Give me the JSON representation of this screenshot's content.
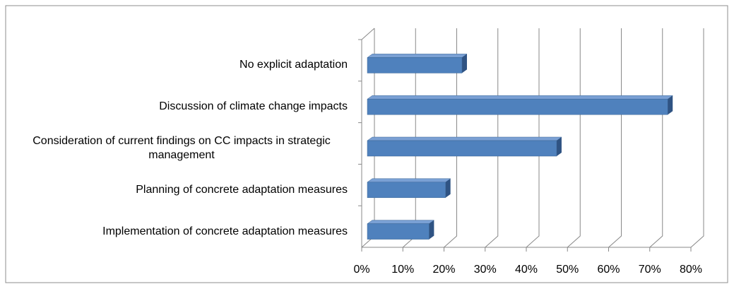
{
  "chart_data": {
    "type": "bar3d_horizontal",
    "categories": [
      "No explicit adaptation",
      "Discussion of climate change impacts",
      "Consideration of current findings on CC impacts in strategic management",
      "Planning of concrete adaptation measures",
      "Implementation of concrete adaptation measures"
    ],
    "values": [
      23,
      73,
      46,
      19,
      15
    ],
    "color": "#4f81bd",
    "xlim": [
      0,
      80
    ],
    "xticks": [
      {
        "value": 0,
        "label": "0%"
      },
      {
        "value": 10,
        "label": "10%"
      },
      {
        "value": 20,
        "label": "20%"
      },
      {
        "value": 30,
        "label": "30%"
      },
      {
        "value": 40,
        "label": "40%"
      },
      {
        "value": 50,
        "label": "50%"
      },
      {
        "value": 60,
        "label": "60%"
      },
      {
        "value": 70,
        "label": "70%"
      },
      {
        "value": 80,
        "label": "80%"
      }
    ],
    "grid": true
  }
}
